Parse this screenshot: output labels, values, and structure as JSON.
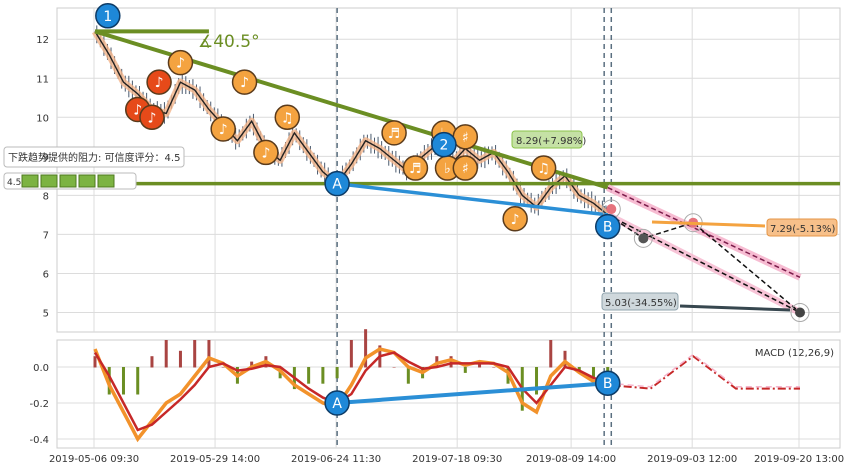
{
  "chart_data": [
    {
      "type": "line",
      "panel": "price",
      "ylim": [
        4.5,
        12.8
      ],
      "yticks": [
        5,
        6,
        7,
        8,
        9,
        10,
        11,
        12
      ],
      "xtick_labels": [
        "2019-05-06 09:30",
        "2019-05-29 14:00",
        "2019-06-24 11:30",
        "2019-07-18 09:30",
        "2019-08-09 14:00",
        "2019-09-03 12:00",
        "2019-09-20 13:00"
      ],
      "grid": true,
      "price_series": [
        {
          "x": 0,
          "y": 12.2
        },
        {
          "x": 2,
          "y": 11.6
        },
        {
          "x": 4,
          "y": 10.9
        },
        {
          "x": 6,
          "y": 10.6
        },
        {
          "x": 8,
          "y": 10.2
        },
        {
          "x": 10,
          "y": 10.1
        },
        {
          "x": 12,
          "y": 10.9
        },
        {
          "x": 14,
          "y": 10.7
        },
        {
          "x": 16,
          "y": 10.2
        },
        {
          "x": 18,
          "y": 9.8
        },
        {
          "x": 20,
          "y": 9.4
        },
        {
          "x": 22,
          "y": 9.9
        },
        {
          "x": 24,
          "y": 9.2
        },
        {
          "x": 26,
          "y": 8.9
        },
        {
          "x": 28,
          "y": 9.6
        },
        {
          "x": 30,
          "y": 9.1
        },
        {
          "x": 32,
          "y": 8.6
        },
        {
          "x": 34,
          "y": 8.3
        },
        {
          "x": 36,
          "y": 8.8
        },
        {
          "x": 38,
          "y": 9.4
        },
        {
          "x": 40,
          "y": 9.2
        },
        {
          "x": 42,
          "y": 8.9
        },
        {
          "x": 44,
          "y": 8.6
        },
        {
          "x": 46,
          "y": 9.0
        },
        {
          "x": 48,
          "y": 9.3
        },
        {
          "x": 50,
          "y": 8.8
        },
        {
          "x": 52,
          "y": 9.2
        },
        {
          "x": 54,
          "y": 8.9
        },
        {
          "x": 56,
          "y": 9.1
        },
        {
          "x": 58,
          "y": 8.6
        },
        {
          "x": 60,
          "y": 8.0
        },
        {
          "x": 62,
          "y": 7.7
        },
        {
          "x": 64,
          "y": 8.2
        },
        {
          "x": 66,
          "y": 8.5
        },
        {
          "x": 68,
          "y": 8.0
        },
        {
          "x": 70,
          "y": 7.8
        },
        {
          "x": 72,
          "y": 7.5
        }
      ],
      "projection_lower": [
        {
          "x": 72,
          "y": 7.5
        },
        {
          "x": 77,
          "y": 6.9
        },
        {
          "x": 84,
          "y": 7.3
        },
        {
          "x": 99,
          "y": 5.0
        }
      ],
      "projection_upper": [
        {
          "x": 72,
          "y": 8.2
        },
        {
          "x": 99,
          "y": 5.9
        }
      ],
      "horizontal_level": 8.3,
      "annotations": {
        "angle": "∡40.5°",
        "resistance_label": "下跌趋势提供的阻力: 可信度评分：4.5",
        "score": "4.5",
        "target_up": "8.29(+7.98%)",
        "target_mid": "7.29(-5.13%)",
        "target_low": "5.03(-34.55%)",
        "markers": [
          "1",
          "2",
          "A",
          "B"
        ]
      }
    },
    {
      "type": "bar",
      "panel": "macd",
      "title": "MACD (12,26,9)",
      "ylim": [
        -0.45,
        0.15
      ],
      "yticks": [
        0.0,
        -0.2,
        -0.4
      ],
      "macd_line": [
        0.1,
        -0.1,
        -0.25,
        -0.4,
        -0.3,
        -0.2,
        -0.15,
        -0.05,
        0.05,
        0.02,
        -0.05,
        0.0,
        0.03,
        -0.02,
        -0.1,
        -0.15,
        -0.2,
        -0.22,
        -0.1,
        0.05,
        0.1,
        0.08,
        0.0,
        -0.03,
        0.02,
        0.04,
        0.01,
        0.03,
        0.02,
        -0.03,
        -0.2,
        -0.25,
        -0.05,
        0.03,
        -0.03,
        -0.08,
        -0.1
      ],
      "signal_line": [
        0.08,
        -0.05,
        -0.2,
        -0.35,
        -0.32,
        -0.25,
        -0.18,
        -0.1,
        0.0,
        0.02,
        -0.02,
        -0.01,
        0.01,
        0.0,
        -0.06,
        -0.12,
        -0.17,
        -0.2,
        -0.15,
        -0.02,
        0.06,
        0.08,
        0.03,
        -0.01,
        0.0,
        0.02,
        0.02,
        0.02,
        0.02,
        0.0,
        -0.12,
        -0.2,
        -0.1,
        0.0,
        -0.02,
        -0.06,
        -0.09
      ],
      "projection": [
        {
          "x": 72,
          "y": -0.1
        },
        {
          "x": 78,
          "y": -0.12
        },
        {
          "x": 84,
          "y": 0.06
        },
        {
          "x": 90,
          "y": -0.12
        },
        {
          "x": 99,
          "y": -0.12
        }
      ]
    }
  ]
}
